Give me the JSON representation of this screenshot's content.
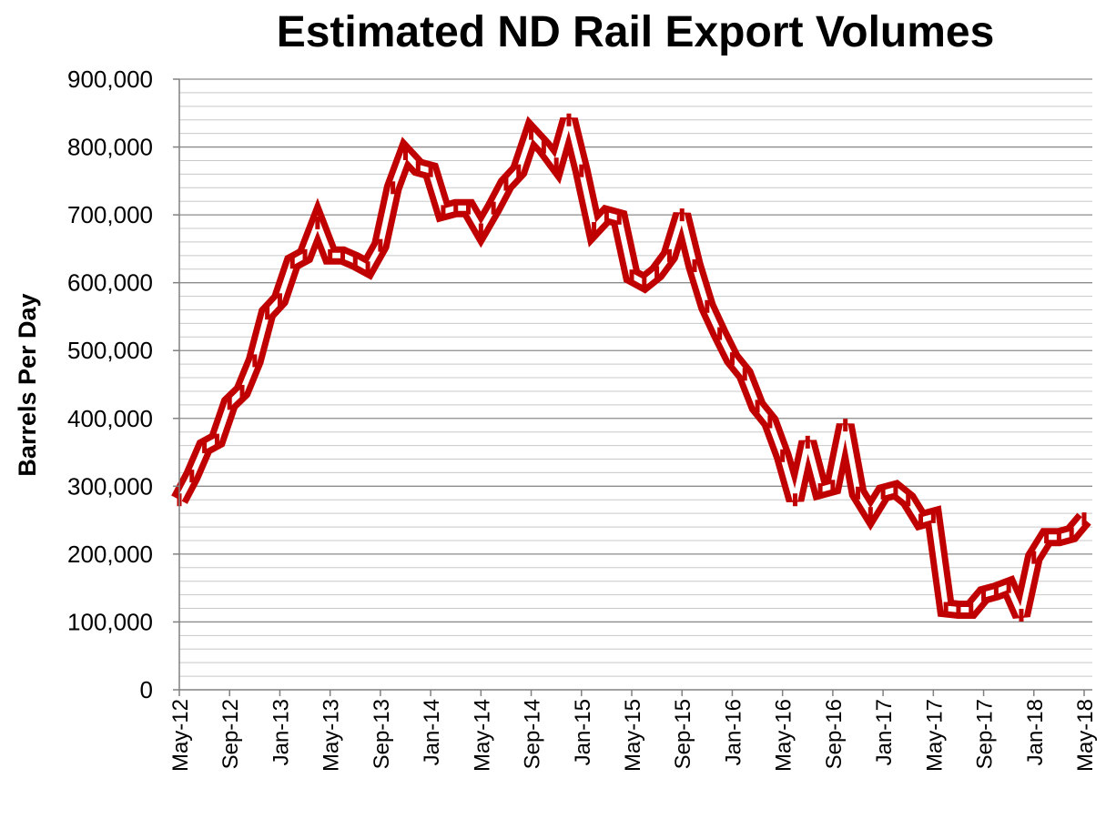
{
  "chart_data": {
    "type": "line",
    "title": "Estimated ND Rail Export Volumes",
    "xlabel": "",
    "ylabel": "Barrels Per Day",
    "ylim": [
      0,
      900000
    ],
    "y_ticks": [
      "0",
      "100,000",
      "200,000",
      "300,000",
      "400,000",
      "500,000",
      "600,000",
      "700,000",
      "800,000",
      "900,000"
    ],
    "x_ticks": [
      "May-12",
      "Sep-12",
      "Jan-13",
      "May-13",
      "Sep-13",
      "Jan-14",
      "May-14",
      "Sep-14",
      "Jan-15",
      "May-15",
      "Sep-15",
      "Jan-16",
      "May-16",
      "Sep-16",
      "Jan-17",
      "May-17",
      "Sep-17",
      "Jan-18",
      "May-18"
    ],
    "grid": true,
    "line_style": "hollow double line",
    "series": [
      {
        "color": "#C00000",
        "x": [
          "May-12",
          "Jun-12",
          "Jul-12",
          "Aug-12",
          "Sep-12",
          "Oct-12",
          "Nov-12",
          "Dec-12",
          "Jan-13",
          "Feb-13",
          "Mar-13",
          "Apr-13",
          "May-13",
          "Jun-13",
          "Jul-13",
          "Aug-13",
          "Sep-13",
          "Oct-13",
          "Nov-13",
          "Dec-13",
          "Jan-14",
          "Feb-14",
          "Mar-14",
          "Apr-14",
          "May-14",
          "Jun-14",
          "Jul-14",
          "Aug-14",
          "Sep-14",
          "Oct-14",
          "Nov-14",
          "Dec-14",
          "Jan-15",
          "Feb-15",
          "Mar-15",
          "Apr-15",
          "May-15",
          "Jun-15",
          "Jul-15",
          "Aug-15",
          "Sep-15",
          "Oct-15",
          "Nov-15",
          "Dec-15",
          "Jan-16",
          "Feb-16",
          "Mar-16",
          "Apr-16",
          "May-16",
          "Jun-16",
          "Jul-16",
          "Aug-16",
          "Sep-16",
          "Oct-16",
          "Nov-16",
          "Dec-16",
          "Jan-17",
          "Feb-17",
          "Mar-17",
          "Apr-17",
          "May-17",
          "Jun-17",
          "Jul-17",
          "Aug-17",
          "Sep-17",
          "Oct-17",
          "Nov-17",
          "Dec-17",
          "Jan-18",
          "Feb-18",
          "Mar-18",
          "Apr-18",
          "May-18"
        ],
        "values": [
          280000,
          315000,
          358000,
          368000,
          422000,
          440000,
          485000,
          555000,
          575000,
          630000,
          640000,
          688000,
          640000,
          640000,
          632000,
          622000,
          655000,
          740000,
          790000,
          770000,
          765000,
          705000,
          710000,
          710000,
          678000,
          710000,
          745000,
          765000,
          820000,
          800000,
          775000,
          840000,
          765000,
          680000,
          700000,
          695000,
          610000,
          600000,
          615000,
          640000,
          700000,
          625000,
          565000,
          525000,
          488000,
          465000,
          418000,
          395000,
          345000,
          280000,
          365000,
          295000,
          300000,
          390000,
          290000,
          260000,
          290000,
          295000,
          280000,
          250000,
          255000,
          120000,
          118000,
          118000,
          140000,
          145000,
          152000,
          110000,
          195000,
          225000,
          225000,
          230000,
          252000
        ]
      }
    ]
  }
}
